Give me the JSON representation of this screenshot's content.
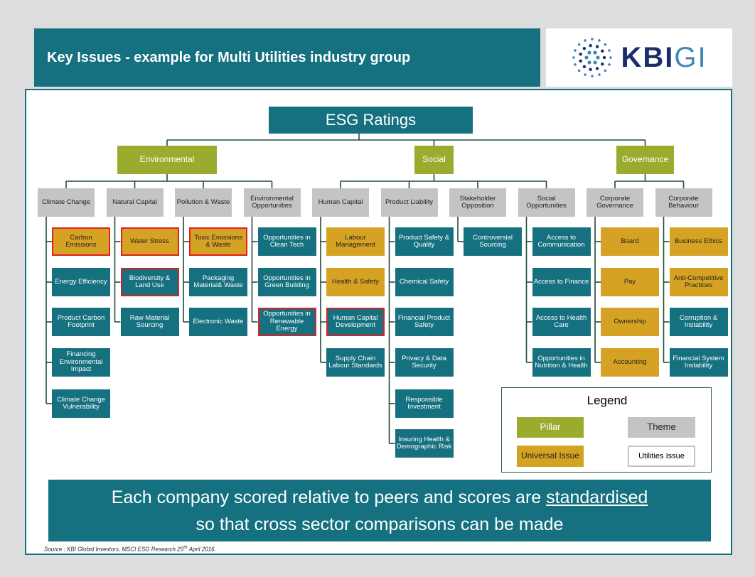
{
  "header": {
    "title": "Key Issues - example for Multi Utilities industry group"
  },
  "logo": {
    "bold": "KBI",
    "light": "GI"
  },
  "diagram": {
    "title": "ESG Ratings",
    "pillars": [
      {
        "name": "Environmental",
        "themes": [
          {
            "name": "Climate Change",
            "issues": [
              {
                "name": "Carbon Emissions",
                "universal": true,
                "utilities": true
              },
              {
                "name": "Energy Efficiency"
              },
              {
                "name": "Product Carbon Footprint"
              },
              {
                "name": "Financing Environmental Impact"
              },
              {
                "name": "Climate Change Vulnerability"
              }
            ]
          },
          {
            "name": "Natural Capital",
            "issues": [
              {
                "name": "Water Stress",
                "universal": true,
                "utilities": true
              },
              {
                "name": "Biodiversity & Land Use",
                "utilities": true
              },
              {
                "name": "Raw Material Sourcing"
              }
            ]
          },
          {
            "name": "Pollution & Waste",
            "issues": [
              {
                "name": "Toxic Emissions & Waste",
                "universal": true,
                "utilities": true
              },
              {
                "name": "Packaging Material& Waste"
              },
              {
                "name": "Electronic Waste"
              }
            ]
          },
          {
            "name": "Environmental Opportunities",
            "issues": [
              {
                "name": "Opportunities in Clean Tech"
              },
              {
                "name": "Opportunities in Green Building"
              },
              {
                "name": "Opportunities in Renewable Energy",
                "utilities": true
              }
            ]
          }
        ]
      },
      {
        "name": "Social",
        "themes": [
          {
            "name": "Human Capital",
            "issues": [
              {
                "name": "Labour Management",
                "universal": true
              },
              {
                "name": "Health & Safety",
                "universal": true
              },
              {
                "name": "Human Capital Development",
                "utilities": true
              },
              {
                "name": "Supply Chain Labour Standards"
              }
            ]
          },
          {
            "name": "Product Liability",
            "issues": [
              {
                "name": "Product Safety & Quality"
              },
              {
                "name": "Chemical Safety"
              },
              {
                "name": "Financial Product Safety"
              },
              {
                "name": "Privacy & Data Security"
              },
              {
                "name": "Responsible Investment"
              },
              {
                "name": "Insuring Health & Demographic Risk"
              }
            ]
          },
          {
            "name": "Stakeholder Opposition",
            "issues": [
              {
                "name": "Controversial Sourcing"
              }
            ]
          },
          {
            "name": "Social Opportunities",
            "issues": [
              {
                "name": "Access to Communication"
              },
              {
                "name": "Access to Finance"
              },
              {
                "name": "Access to Health Care"
              },
              {
                "name": "Opportunities in Nutrition & Health"
              }
            ]
          }
        ]
      },
      {
        "name": "Governance",
        "themes": [
          {
            "name": "Corporate Governance",
            "issues": [
              {
                "name": "Board",
                "universal": true
              },
              {
                "name": "Pay",
                "universal": true
              },
              {
                "name": "Ownership",
                "universal": true
              },
              {
                "name": "Accounting",
                "universal": true
              }
            ]
          },
          {
            "name": "Corporate Behaviour",
            "issues": [
              {
                "name": "Business Ethics",
                "universal": true
              },
              {
                "name": "Anti-Competitive Practices",
                "universal": true
              },
              {
                "name": "Corruption & Instability"
              },
              {
                "name": "Financial System Instability"
              }
            ]
          }
        ]
      }
    ]
  },
  "legend": {
    "title": "Legend",
    "pillar": "Pillar",
    "theme": "Theme",
    "universal": "Universal Issue",
    "utilities": "Utilities Issue"
  },
  "banner": {
    "before": "Each company scored relative to peers and scores are ",
    "underlined": "standardised",
    "after": "so that cross sector comparisons can be made"
  },
  "source": {
    "text": "Source : KBI Global Investors, MSCI ESG Research 25",
    "sup": "th",
    "end": " April 2016."
  }
}
